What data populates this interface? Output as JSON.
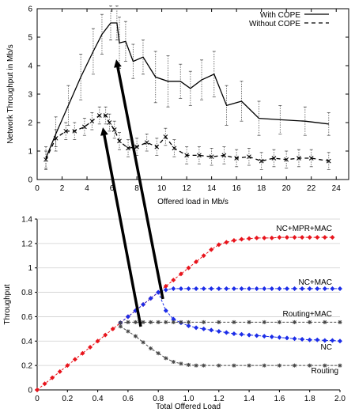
{
  "chart_data": [
    {
      "type": "line",
      "xlabel": "Offered load in Mb/s",
      "ylabel": "Network Throughput in Mb/s",
      "xlim": [
        0,
        25
      ],
      "ylim": [
        0,
        6
      ],
      "x_ticks": [
        "0",
        "2",
        "4",
        "6",
        "8",
        "10",
        "12",
        "14",
        "16",
        "18",
        "20",
        "22",
        "24"
      ],
      "y_ticks": [
        "0",
        "1",
        "2",
        "3",
        "4",
        "5",
        "6"
      ],
      "legend_position": "top-right",
      "error_bars": true,
      "series": [
        {
          "name": "With COPE",
          "style": "solid",
          "x": [
            0.7,
            1.5,
            2.5,
            3.5,
            4.5,
            5.2,
            5.9,
            6.4,
            6.6,
            7.1,
            7.7,
            8.5,
            9.5,
            10.5,
            11.5,
            12.3,
            13.2,
            14.2,
            15.2,
            16.4,
            17.8,
            19.5,
            21.5,
            23.4
          ],
          "y": [
            0.75,
            1.6,
            2.6,
            3.6,
            4.5,
            5.1,
            5.5,
            5.5,
            4.8,
            4.85,
            4.15,
            4.3,
            3.6,
            3.45,
            3.45,
            3.2,
            3.5,
            3.7,
            2.6,
            2.75,
            2.15,
            2.1,
            2.05,
            1.95
          ],
          "err": [
            0.4,
            0.6,
            0.7,
            0.8,
            0.8,
            0.7,
            0.6,
            0.6,
            0.9,
            0.7,
            0.6,
            0.6,
            0.9,
            0.9,
            0.6,
            0.6,
            0.7,
            0.8,
            0.7,
            0.7,
            0.6,
            0.5,
            0.5,
            0.4
          ]
        },
        {
          "name": "Without COPE",
          "style": "dashed",
          "x": [
            0.7,
            1.5,
            2.3,
            3.0,
            3.8,
            4.4,
            5.0,
            5.5,
            5.8,
            6.2,
            6.6,
            7.3,
            8.0,
            8.8,
            9.6,
            10.3,
            11.0,
            12.0,
            13.0,
            14.0,
            15.0,
            16.0,
            17.0,
            18.0,
            19.0,
            20.0,
            21.0,
            22.0,
            23.4
          ],
          "y": [
            0.7,
            1.45,
            1.7,
            1.7,
            1.85,
            2.05,
            2.25,
            2.25,
            2.0,
            1.75,
            1.35,
            1.1,
            1.15,
            1.3,
            1.15,
            1.5,
            1.1,
            0.85,
            0.85,
            0.8,
            0.85,
            0.75,
            0.8,
            0.65,
            0.75,
            0.7,
            0.75,
            0.75,
            0.65
          ]
        }
      ]
    },
    {
      "type": "line",
      "xlabel": "Total Offered Load",
      "ylabel": "Throughput",
      "xlim": [
        0,
        2.0
      ],
      "ylim": [
        0,
        1.4
      ],
      "x_ticks": [
        "0",
        "0.2",
        "0.4",
        "0.6",
        "0.8",
        "1.0",
        "1.2",
        "1.4",
        "1.6",
        "1.8",
        "2.0"
      ],
      "y_ticks": [
        "0",
        "0.2",
        "0.4",
        "0.6",
        "0.8",
        "1",
        "1.2",
        "1.4"
      ],
      "series": [
        {
          "name": "NC+MPR+MAC",
          "color": "#e8141c",
          "marker": "diamond",
          "x": [
            0.0,
            0.05,
            0.1,
            0.15,
            0.2,
            0.25,
            0.3,
            0.35,
            0.4,
            0.45,
            0.5,
            0.55,
            0.6,
            0.65,
            0.7,
            0.75,
            0.8,
            0.85,
            0.9,
            0.95,
            1.0,
            1.05,
            1.1,
            1.15,
            1.2,
            1.25,
            1.3,
            1.35,
            1.4,
            1.45,
            1.5,
            1.55,
            1.6,
            1.65,
            1.7,
            1.75,
            1.8,
            1.85,
            1.9,
            1.95
          ],
          "y": [
            0.0,
            0.05,
            0.1,
            0.15,
            0.2,
            0.25,
            0.3,
            0.35,
            0.4,
            0.45,
            0.5,
            0.55,
            0.6,
            0.65,
            0.7,
            0.75,
            0.8,
            0.85,
            0.9,
            0.95,
            1.0,
            1.05,
            1.1,
            1.15,
            1.19,
            1.21,
            1.225,
            1.235,
            1.24,
            1.245,
            1.245,
            1.245,
            1.25,
            1.25,
            1.25,
            1.25,
            1.25,
            1.25,
            1.25,
            1.25
          ]
        },
        {
          "name": "NC+MAC",
          "color": "#1c2de8",
          "marker": "diamond",
          "x": [
            0.55,
            0.6,
            0.65,
            0.7,
            0.75,
            0.8,
            0.85,
            0.9,
            0.95,
            1.0,
            1.05,
            1.1,
            1.15,
            1.2,
            1.25,
            1.3,
            1.35,
            1.4,
            1.45,
            1.5,
            1.55,
            1.6,
            1.65,
            1.7,
            1.75,
            1.8,
            1.85,
            1.9,
            1.95,
            2.0
          ],
          "y": [
            0.55,
            0.6,
            0.65,
            0.7,
            0.75,
            0.8,
            0.82,
            0.83,
            0.83,
            0.83,
            0.83,
            0.83,
            0.83,
            0.83,
            0.83,
            0.83,
            0.83,
            0.83,
            0.83,
            0.83,
            0.83,
            0.83,
            0.83,
            0.83,
            0.83,
            0.83,
            0.83,
            0.83,
            0.83,
            0.83
          ]
        },
        {
          "name": "NC",
          "color": "#1c2de8",
          "marker": "diamond",
          "x": [
            0.8,
            0.85,
            0.9,
            0.95,
            1.0,
            1.05,
            1.1,
            1.15,
            1.2,
            1.25,
            1.3,
            1.35,
            1.4,
            1.45,
            1.5,
            1.55,
            1.6,
            1.65,
            1.7,
            1.75,
            1.8,
            1.85,
            1.9,
            1.95,
            2.0
          ],
          "y": [
            0.8,
            0.65,
            0.58,
            0.55,
            0.525,
            0.51,
            0.5,
            0.49,
            0.48,
            0.47,
            0.46,
            0.455,
            0.45,
            0.445,
            0.44,
            0.435,
            0.43,
            0.425,
            0.42,
            0.415,
            0.41,
            0.41,
            0.405,
            0.405,
            0.4
          ]
        },
        {
          "name": "Routing+MAC",
          "color": "#444444",
          "marker": "star",
          "x": [
            0.55,
            0.6,
            0.65,
            0.7,
            0.75,
            0.8,
            0.85,
            0.9,
            0.95,
            1.0,
            1.1,
            1.2,
            1.3,
            1.4,
            1.5,
            1.6,
            1.7,
            1.8,
            1.9,
            2.0
          ],
          "y": [
            0.55,
            0.555,
            0.555,
            0.555,
            0.555,
            0.555,
            0.555,
            0.555,
            0.555,
            0.555,
            0.555,
            0.555,
            0.555,
            0.555,
            0.555,
            0.555,
            0.555,
            0.555,
            0.555,
            0.555
          ]
        },
        {
          "name": "Routing",
          "color": "#444444",
          "marker": "star",
          "x": [
            0.55,
            0.6,
            0.65,
            0.7,
            0.75,
            0.8,
            0.85,
            0.9,
            0.95,
            1.0,
            1.05,
            1.1,
            1.2,
            1.3,
            1.4,
            1.5,
            1.6,
            1.7,
            1.8,
            1.9,
            2.0
          ],
          "y": [
            0.52,
            0.48,
            0.44,
            0.39,
            0.34,
            0.3,
            0.26,
            0.23,
            0.215,
            0.205,
            0.2,
            0.2,
            0.2,
            0.2,
            0.2,
            0.2,
            0.2,
            0.2,
            0.2,
            0.2,
            0.2
          ]
        }
      ]
    }
  ]
}
